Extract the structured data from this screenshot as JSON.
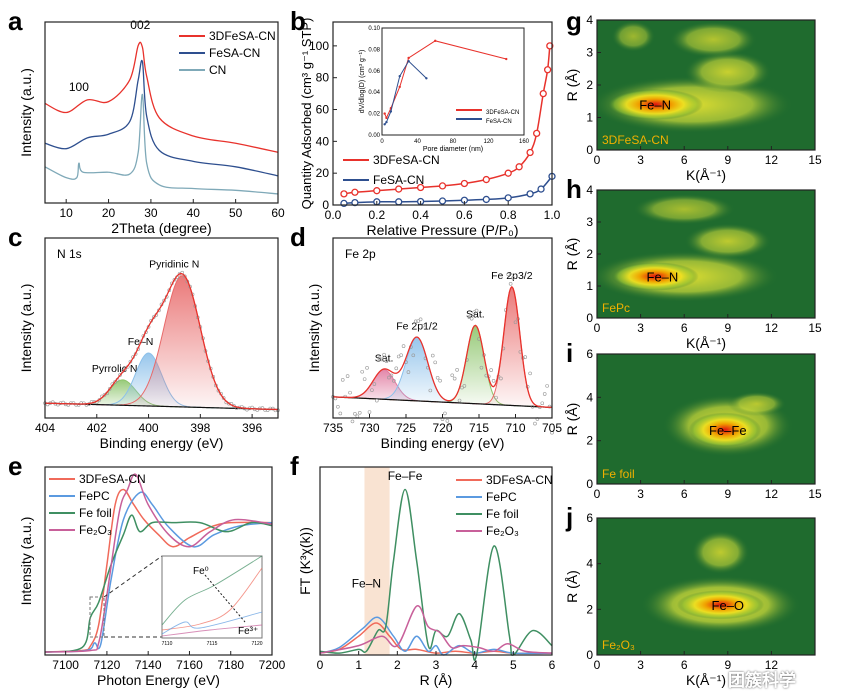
{
  "colors": {
    "red": "#e8322c",
    "navy": "#2e4f8f",
    "teal": "#7fa9b8",
    "salmon": "#f06a5a",
    "blue": "#5b9ae0",
    "green": "#3f8f62",
    "pink": "#c8609a",
    "map_bg": "#1f6b2e"
  },
  "watermark": "团簇科学",
  "chart_data": [
    {
      "panel": "a",
      "type": "line",
      "xlabel": "2Theta (degree)",
      "ylabel": "Intensity (a.u.)",
      "xlim": [
        5,
        60
      ],
      "ylim": [
        0,
        1
      ],
      "xticks": [
        10,
        20,
        30,
        40,
        50,
        60
      ],
      "annotations": [
        {
          "text": "100",
          "x": 13,
          "y": 0.62
        },
        {
          "text": "002",
          "x": 27.5,
          "y": 0.96
        }
      ],
      "series": [
        {
          "name": "3DFeSA-CN",
          "color": "#e8322c",
          "x": [
            5,
            10,
            15,
            20,
            25,
            27,
            28,
            29,
            32,
            40,
            50,
            60
          ],
          "y": [
            0.55,
            0.5,
            0.57,
            0.56,
            0.68,
            0.87,
            0.86,
            0.7,
            0.47,
            0.37,
            0.33,
            0.28
          ]
        },
        {
          "name": "FeSA-CN",
          "color": "#2e4f8f",
          "x": [
            5,
            10,
            15,
            20,
            25,
            27,
            28,
            29,
            32,
            40,
            50,
            60
          ],
          "y": [
            0.33,
            0.3,
            0.36,
            0.38,
            0.45,
            0.68,
            0.78,
            0.48,
            0.29,
            0.23,
            0.2,
            0.15
          ]
        },
        {
          "name": "CN",
          "color": "#7fa9b8",
          "x": [
            5,
            10,
            12.5,
            13,
            14,
            20,
            25,
            27,
            28,
            29,
            32,
            40,
            50,
            60
          ],
          "y": [
            0.2,
            0.14,
            0.14,
            0.22,
            0.17,
            0.17,
            0.16,
            0.28,
            0.6,
            0.22,
            0.1,
            0.08,
            0.07,
            0.05
          ]
        }
      ]
    },
    {
      "panel": "b",
      "type": "line",
      "xlabel": "Relative Pressure (P/P₀)",
      "ylabel": "Quantity Adsorbed (cm³ g⁻¹ STP)",
      "xlim": [
        0,
        1
      ],
      "ylim": [
        0,
        115
      ],
      "xticks": [
        0,
        0.2,
        0.4,
        0.6,
        0.8,
        1.0
      ],
      "yticks": [
        0,
        20,
        40,
        60,
        80,
        100
      ],
      "series": [
        {
          "name": "3DFeSA-CN",
          "color": "#e8322c",
          "x": [
            0.05,
            0.1,
            0.2,
            0.3,
            0.4,
            0.5,
            0.6,
            0.7,
            0.8,
            0.85,
            0.9,
            0.93,
            0.96,
            0.98,
            0.99
          ],
          "y": [
            7,
            8,
            9,
            10,
            11,
            12,
            13.5,
            16,
            20,
            24,
            33,
            45,
            70,
            85,
            100
          ]
        },
        {
          "name": "FeSA-CN",
          "color": "#2e4f8f",
          "x": [
            0.05,
            0.1,
            0.2,
            0.3,
            0.4,
            0.5,
            0.6,
            0.7,
            0.8,
            0.9,
            0.95,
            1.0
          ],
          "y": [
            1,
            1.5,
            2,
            2,
            2.2,
            2.5,
            3,
            3.5,
            4.5,
            7,
            10,
            18
          ]
        }
      ],
      "inset": {
        "xlabel": "Pore diameter (nm)",
        "ylabel": "dV/dlog(D) (cm³ g⁻¹)",
        "xlim": [
          0,
          160
        ],
        "ylim": [
          0,
          0.1
        ],
        "xticks": [
          0,
          40,
          80,
          120,
          160
        ],
        "yticks": [
          0,
          0.02,
          0.04,
          0.06,
          0.08,
          0.1
        ],
        "series": [
          {
            "name": "3DFeSA-CN",
            "color": "#e8322c",
            "x": [
              3,
              5,
              10,
              20,
              30,
              60,
              140
            ],
            "y": [
              0.02,
              0.016,
              0.025,
              0.045,
              0.072,
              0.088,
              0.071
            ]
          },
          {
            "name": "FeSA-CN",
            "color": "#2e4f8f",
            "x": [
              3,
              5,
              10,
              20,
              30,
              50
            ],
            "y": [
              0.01,
              0.012,
              0.022,
              0.055,
              0.069,
              0.053
            ]
          }
        ]
      }
    },
    {
      "panel": "c",
      "type": "line",
      "title": "N 1s",
      "xlabel": "Binding energy (eV)",
      "ylabel": "Intensity (a.u.)",
      "xlim": [
        404,
        395
      ],
      "ylim": [
        0,
        0.85
      ],
      "xticks": [
        404,
        402,
        400,
        398,
        396
      ],
      "baseline": [
        0.07,
        0.04
      ],
      "peaks": [
        {
          "name": "Pyrrolic N",
          "center": 401,
          "height": 0.12,
          "width": 0.5,
          "color": "#8cc46a"
        },
        {
          "name": "Fe–N",
          "center": 400,
          "height": 0.25,
          "width": 0.5,
          "color": "#8cc0ea"
        },
        {
          "name": "Pyridinic N",
          "center": 398.7,
          "height": 0.62,
          "width": 0.7,
          "color": "#e86a6a"
        }
      ]
    },
    {
      "panel": "d",
      "type": "line",
      "title": "Fe 2p",
      "xlabel": "Binding energy (eV)",
      "ylabel": "Intensity (a.u.)",
      "xlim": [
        735,
        705
      ],
      "ylim": [
        0,
        0.85
      ],
      "xticks": [
        735,
        730,
        725,
        720,
        715,
        710,
        705
      ],
      "baseline": [
        0.1,
        0.05
      ],
      "peaks": [
        {
          "name": "Sat.",
          "center": 728,
          "height": 0.14,
          "width": 1.5,
          "color": "#e07aa0"
        },
        {
          "name": "Fe 2p1/2",
          "center": 723.5,
          "height": 0.3,
          "width": 1.5,
          "color": "#8cc0ea"
        },
        {
          "name": "Sat.",
          "center": 715.5,
          "height": 0.37,
          "width": 1.2,
          "color": "#8cc46a"
        },
        {
          "name": "Fe 2p3/2",
          "center": 710.5,
          "height": 0.56,
          "width": 1.1,
          "color": "#e86a6a"
        }
      ]
    },
    {
      "panel": "e",
      "type": "line",
      "xlabel": "Photon Energy (eV)",
      "ylabel": "Intensity (a.u.)",
      "xlim": [
        7090,
        7200
      ],
      "ylim": [
        0,
        1.25
      ],
      "xticks": [
        7100,
        7120,
        7140,
        7160,
        7180,
        7200
      ],
      "inset": {
        "xticks": [
          7110,
          7115,
          7120
        ],
        "labels": [
          "Fe⁰",
          "Fe³⁺"
        ]
      },
      "series": [
        {
          "name": "3DFeSA-CN",
          "color": "#f06a5a",
          "x": [
            7090,
            7108,
            7112,
            7116,
            7120,
            7124,
            7128,
            7133,
            7138,
            7145,
            7152,
            7160,
            7170,
            7180,
            7200
          ],
          "y": [
            0.02,
            0.03,
            0.06,
            0.2,
            0.6,
            1.0,
            1.1,
            1.0,
            0.9,
            0.8,
            0.72,
            0.78,
            0.85,
            0.88,
            0.88
          ]
        },
        {
          "name": "FePC",
          "color": "#5b9ae0",
          "x": [
            7090,
            7110,
            7114,
            7117,
            7122,
            7128,
            7136,
            7142,
            7150,
            7162,
            7172,
            7185,
            7200
          ],
          "y": [
            0.02,
            0.03,
            0.08,
            0.07,
            0.5,
            0.9,
            1.08,
            1.0,
            0.85,
            0.72,
            0.8,
            0.86,
            0.88
          ]
        },
        {
          "name": "Fe foil",
          "color": "#3f8f62",
          "x": [
            7090,
            7108,
            7112,
            7116,
            7122,
            7128,
            7132,
            7136,
            7142,
            7152,
            7165,
            7178,
            7190,
            7200
          ],
          "y": [
            0.02,
            0.05,
            0.25,
            0.35,
            0.6,
            0.8,
            0.93,
            0.82,
            0.88,
            0.88,
            0.88,
            0.82,
            0.88,
            0.86
          ]
        },
        {
          "name": "Fe₂O₃",
          "color": "#c8609a",
          "x": [
            7090,
            7112,
            7116,
            7120,
            7126,
            7130,
            7134,
            7140,
            7150,
            7160,
            7170,
            7182,
            7200
          ],
          "y": [
            0.02,
            0.03,
            0.08,
            0.4,
            0.95,
            1.1,
            1.2,
            1.0,
            0.8,
            0.72,
            0.82,
            0.9,
            0.87
          ]
        }
      ]
    },
    {
      "panel": "f",
      "type": "line",
      "xlabel": "R (Å)",
      "ylabel": "FT (K³χ(k))",
      "xlim": [
        0,
        6
      ],
      "ylim": [
        0,
        1
      ],
      "xticks": [
        0,
        1,
        2,
        3,
        4,
        5,
        6
      ],
      "shaded_band": [
        1.15,
        1.8
      ],
      "annotations": [
        {
          "text": "Fe–Fe",
          "x": 2.2,
          "y": 0.93
        },
        {
          "text": "Fe–N",
          "x": 1.2,
          "y": 0.36
        }
      ],
      "series": [
        {
          "name": "3DFeSA-CN",
          "color": "#f06a5a",
          "x": [
            0,
            0.5,
            1,
            1.45,
            1.8,
            2.1,
            2.5,
            3,
            3.5,
            4,
            4.5,
            5,
            6
          ],
          "y": [
            0.01,
            0.03,
            0.1,
            0.17,
            0.1,
            0.03,
            0.03,
            0.01,
            0.02,
            0.01,
            0.02,
            0.01,
            0.01
          ]
        },
        {
          "name": "FePC",
          "color": "#5b9ae0",
          "x": [
            0,
            0.5,
            1.1,
            1.5,
            1.9,
            2.2,
            2.5,
            2.8,
            3,
            3.2,
            3.6,
            4,
            4.5,
            5,
            6
          ],
          "y": [
            0.01,
            0.04,
            0.14,
            0.2,
            0.1,
            0.02,
            0.1,
            0.02,
            0.05,
            0,
            0.05,
            0.01,
            0.03,
            0.01,
            0.01
          ]
        },
        {
          "name": "Fe foil",
          "color": "#3f8f62",
          "x": [
            0,
            0.5,
            1,
            1.2,
            1.5,
            1.7,
            1.9,
            2.2,
            2.5,
            2.8,
            3,
            3.3,
            3.6,
            3.9,
            4.05,
            4.5,
            4.9,
            5,
            5.5,
            6
          ],
          "y": [
            0.02,
            0.01,
            0.03,
            0.02,
            0.13,
            0.15,
            0.5,
            0.88,
            0.5,
            0.05,
            0.13,
            0.1,
            0.22,
            0.08,
            0,
            0.58,
            0.1,
            0,
            0.13,
            0.05
          ]
        },
        {
          "name": "Fe₂O₃",
          "color": "#c8609a",
          "x": [
            0,
            1,
            1.6,
            2,
            2.5,
            2.8,
            3.1,
            3.4,
            3.7,
            4.1,
            4.5,
            4.85,
            5.3,
            6
          ],
          "y": [
            0.01,
            0.05,
            0.1,
            0.05,
            0.26,
            0.15,
            0.12,
            0.04,
            0.05,
            0.04,
            0.02,
            0.06,
            0.02,
            0.01
          ]
        }
      ]
    },
    {
      "panel": "g",
      "type": "heatmap",
      "label": "3DFeSA-CN",
      "xlabel": "K(Å⁻¹)",
      "ylabel": "R (Å)",
      "xlim": [
        0,
        15
      ],
      "ylim": [
        0,
        4
      ],
      "xticks": [
        0,
        3,
        6,
        9,
        12,
        15
      ],
      "yticks": [
        0,
        1,
        2,
        3,
        4
      ],
      "peak_label": {
        "text": "Fe–N",
        "k": 4,
        "r": 1.4
      },
      "blobs": [
        {
          "k": 6.5,
          "r": 1.4,
          "rk": 7,
          "rr": 0.55,
          "i": 0.7
        },
        {
          "k": 4,
          "r": 1.4,
          "rk": 3.3,
          "rr": 0.3,
          "i": 1
        },
        {
          "k": 9,
          "r": 2.4,
          "rk": 3,
          "rr": 0.4,
          "i": 0.6
        },
        {
          "k": 8,
          "r": 3.4,
          "rk": 3,
          "rr": 0.35,
          "i": 0.5
        },
        {
          "k": 2.5,
          "r": 3.5,
          "rk": 1.5,
          "rr": 0.3,
          "i": 0.4
        }
      ]
    },
    {
      "panel": "h",
      "type": "heatmap",
      "label": "FePc",
      "xlabel": "K(Å⁻¹)",
      "ylabel": "R (Å)",
      "xlim": [
        0,
        15
      ],
      "ylim": [
        0,
        4
      ],
      "xticks": [
        0,
        3,
        6,
        9,
        12,
        15
      ],
      "yticks": [
        0,
        1,
        2,
        3,
        4
      ],
      "peak_label": {
        "text": "Fe–N",
        "k": 4.5,
        "r": 1.3
      },
      "blobs": [
        {
          "k": 6,
          "r": 1.3,
          "rk": 6.5,
          "rr": 0.5,
          "i": 0.7
        },
        {
          "k": 4,
          "r": 1.3,
          "rk": 3,
          "rr": 0.28,
          "i": 1
        },
        {
          "k": 9,
          "r": 2.4,
          "rk": 3,
          "rr": 0.35,
          "i": 0.55
        },
        {
          "k": 6,
          "r": 3.4,
          "rk": 3.5,
          "rr": 0.3,
          "i": 0.45
        }
      ]
    },
    {
      "panel": "i",
      "type": "heatmap",
      "label": "Fe foil",
      "xlabel": "",
      "ylabel": "R (Å)",
      "xlim": [
        0,
        15
      ],
      "ylim": [
        0,
        6
      ],
      "xticks": [
        0,
        3,
        6,
        9,
        12,
        15
      ],
      "yticks": [
        0,
        2,
        4,
        6
      ],
      "peak_label": {
        "text": "Fe–Fe",
        "k": 9,
        "r": 2.5
      },
      "blobs": [
        {
          "k": 9,
          "r": 2.7,
          "rk": 4.5,
          "rr": 0.9,
          "i": 0.7
        },
        {
          "k": 8.8,
          "r": 2.5,
          "rk": 2.5,
          "rr": 0.5,
          "i": 1
        },
        {
          "k": 11,
          "r": 3.7,
          "rk": 2,
          "rr": 0.35,
          "i": 0.5
        }
      ]
    },
    {
      "panel": "j",
      "type": "heatmap",
      "label": "Fe₂O₃",
      "xlabel": "K(Å⁻¹)",
      "ylabel": "R (Å)",
      "xlim": [
        0,
        15
      ],
      "ylim": [
        0,
        6
      ],
      "xticks": [
        0,
        3,
        6,
        9,
        12
      ],
      "yticks": [
        0,
        2,
        4,
        6
      ],
      "peak_label": {
        "text": "Fe–O",
        "k": 9,
        "r": 2.2
      },
      "blobs": [
        {
          "k": 8.5,
          "r": 2.2,
          "rk": 5.5,
          "rr": 0.8,
          "i": 0.75
        },
        {
          "k": 8.5,
          "r": 2.2,
          "rk": 3,
          "rr": 0.4,
          "i": 1
        },
        {
          "k": 8.5,
          "r": 4.5,
          "rk": 2,
          "rr": 0.6,
          "i": 0.55
        }
      ]
    }
  ]
}
